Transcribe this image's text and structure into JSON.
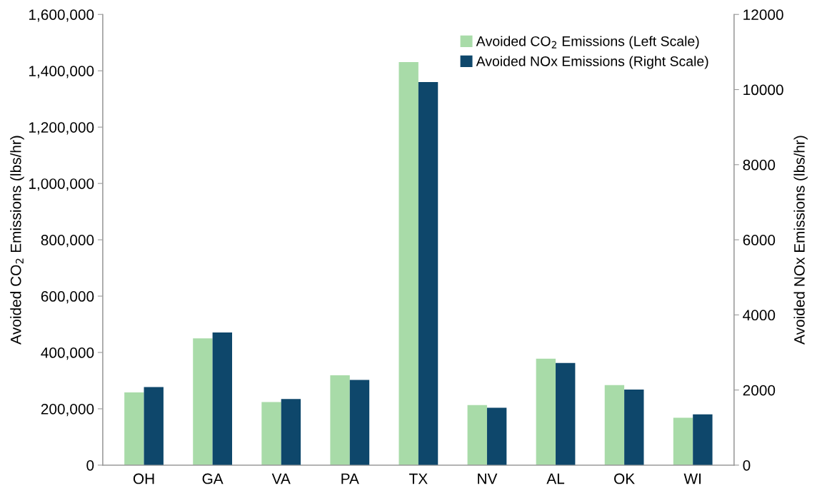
{
  "chart_data": {
    "type": "bar",
    "ylabel": "Avoided CO$_{2}$ Emissions (lbs/hr)",
    "y2label": "Avoided NOx Emissions (lbs/hr)",
    "categories": [
      "OH",
      "GA",
      "VA",
      "PA",
      "TX",
      "NV",
      "AL",
      "OK",
      "WI"
    ],
    "series": [
      {
        "name": "Avoided CO$_{2}$ Emissions (Left Scale)",
        "color": "#a8dba8",
        "values": [
          258000,
          450000,
          224000,
          319000,
          1431000,
          213000,
          378000,
          284000,
          168000
        ]
      },
      {
        "name": "Avoided NOx Emissions (Right Scale)",
        "color": "#0e476b",
        "axis": "y2",
        "values": [
          2080,
          3530,
          1760,
          2270,
          10200,
          1530,
          2720,
          2010,
          1350
        ]
      }
    ],
    "ylim": [
      0,
      1600000
    ],
    "yticks": [
      0,
      {
        "value": 200000,
        "label": "200,000"
      },
      {
        "value": 400000,
        "label": "400,000"
      },
      {
        "value": 600000,
        "label": "600,000"
      },
      {
        "value": 800000,
        "label": "800,000"
      },
      {
        "value": 1000000,
        "label": "1,000,000"
      },
      {
        "value": 1200000,
        "label": "1,200,000"
      },
      {
        "value": 1400000,
        "label": "1,400,000"
      },
      {
        "value": 1600000,
        "label": "1,600,000"
      }
    ],
    "y2lim": [
      0,
      12000
    ],
    "y2ticks": [
      0,
      2000,
      4000,
      6000,
      8000,
      10000,
      12000
    ],
    "grid": false,
    "legend": "top right"
  }
}
